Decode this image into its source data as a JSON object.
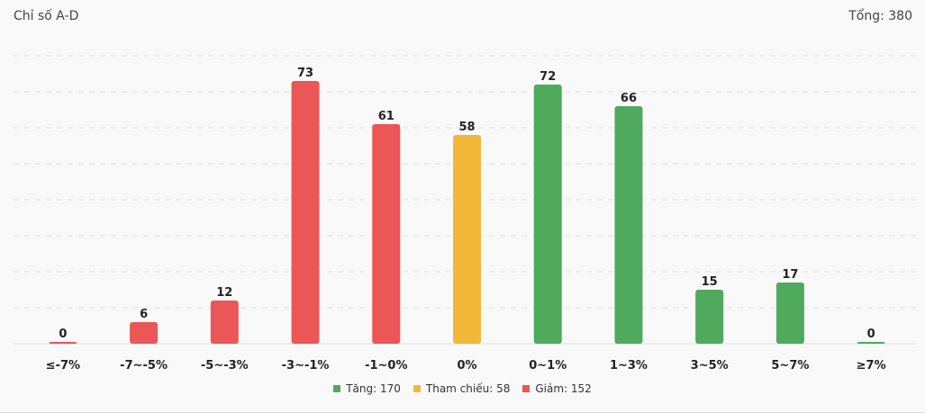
{
  "header": {
    "title": "Chỉ số A-D",
    "total": "Tổng: 380"
  },
  "colors": {
    "up": "#4faa5e",
    "ref": "#f2b83a",
    "down": "#eb5656",
    "grid": "#dddddd",
    "label": "#222222"
  },
  "legend": [
    {
      "key": "up",
      "label": "Tăng: 170"
    },
    {
      "key": "ref",
      "label": "Tham chiếu: 58"
    },
    {
      "key": "down",
      "label": "Giảm: 152"
    }
  ],
  "chart_data": {
    "type": "bar",
    "categories": [
      "≤-7%",
      "-7~-5%",
      "-5~-3%",
      "-3~-1%",
      "-1~0%",
      "0%",
      "0~1%",
      "1~3%",
      "3~5%",
      "5~7%",
      "≥7%"
    ],
    "values": [
      0,
      6,
      12,
      73,
      61,
      58,
      72,
      66,
      15,
      17,
      0
    ],
    "bar_colors": [
      "down",
      "down",
      "down",
      "down",
      "down",
      "ref",
      "up",
      "up",
      "up",
      "up",
      "up"
    ],
    "ylim": [
      0,
      80
    ],
    "grid": true,
    "legend_position": "bottom",
    "data_labels": true
  }
}
